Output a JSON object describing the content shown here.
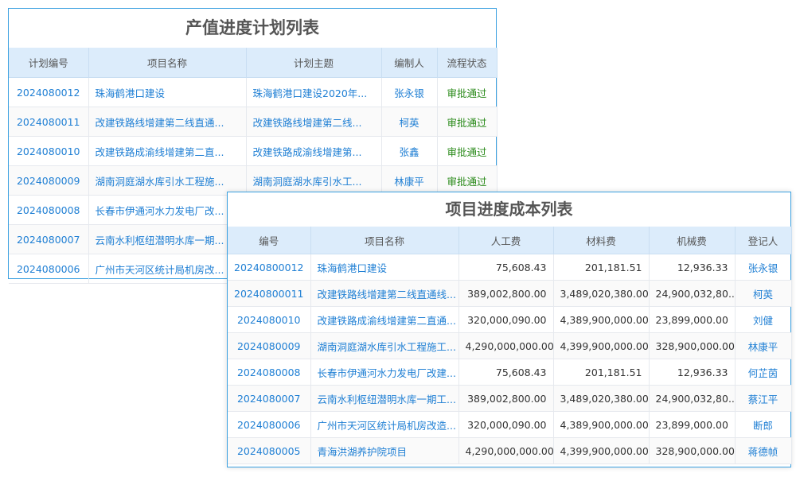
{
  "plan_table": {
    "title": "产值进度计划列表",
    "columns": [
      "计划编号",
      "项目名称",
      "计划主题",
      "编制人",
      "流程状态"
    ],
    "rows": [
      [
        "2024080012",
        "珠海鹤港口建设",
        "珠海鹤港口建设2020年...",
        "张永银",
        "审批通过"
      ],
      [
        "2024080011",
        "改建铁路线增建第二线直通...",
        "改建铁路线增建第二线...",
        "柯英",
        "审批通过"
      ],
      [
        "2024080010",
        "改建铁路成渝线增建第二直...",
        "改建铁路成渝线增建第...",
        "张鑫",
        "审批通过"
      ],
      [
        "2024080009",
        "湖南洞庭湖水库引水工程施...",
        "湖南洞庭湖水库引水工...",
        "林康平",
        "审批通过"
      ],
      [
        "2024080008",
        "长春市伊通河水力发电厂改...",
        "",
        "",
        ""
      ],
      [
        "2024080007",
        "云南水利枢纽潜明水库一期...",
        "",
        "",
        ""
      ],
      [
        "2024080006",
        "广州市天河区统计局机房改...",
        "",
        "",
        ""
      ]
    ]
  },
  "cost_table": {
    "title": "项目进度成本列表",
    "columns": [
      "编号",
      "项目名称",
      "人工费",
      "材料费",
      "机械费",
      "登记人"
    ],
    "rows": [
      [
        "20240800012",
        "珠海鹤港口建设",
        "75,608.43",
        "201,181.51",
        "12,936.33",
        "张永银"
      ],
      [
        "20240800011",
        "改建铁路线增建第二线直通线...",
        "389,002,800.00",
        "3,489,020,380.00",
        "24,900,032,80...",
        "柯英"
      ],
      [
        "2024080010",
        "改建铁路成渝线增建第二直通...",
        "320,000,090.00",
        "4,389,900,000.00",
        "23,899,000.00",
        "刘健"
      ],
      [
        "2024080009",
        "湖南洞庭湖水库引水工程施工...",
        "4,290,000,000.00",
        "4,399,900,000.00",
        "328,900,000.00",
        "林康平"
      ],
      [
        "2024080008",
        "长春市伊通河水力发电厂改建...",
        "75,608.43",
        "201,181.51",
        "12,936.33",
        "何芷茵"
      ],
      [
        "2024080007",
        "云南水利枢纽潜明水库一期工...",
        "389,002,800.00",
        "3,489,020,380.00",
        "24,900,032,80...",
        "蔡江平"
      ],
      [
        "2024080006",
        "广州市天河区统计局机房改造...",
        "320,000,090.00",
        "4,389,900,000.00",
        "23,899,000.00",
        "断郎"
      ],
      [
        "2024080005",
        "青海洪湖养护院项目",
        "4,290,000,000.00",
        "4,399,900,000.00",
        "328,900,000.00",
        "蒋德帧"
      ]
    ]
  },
  "colors": {
    "link": "#1f7fd4",
    "status_approved": "#2a8a1a",
    "header_bg": "#dcecfb",
    "border": "#3aa0e0"
  }
}
